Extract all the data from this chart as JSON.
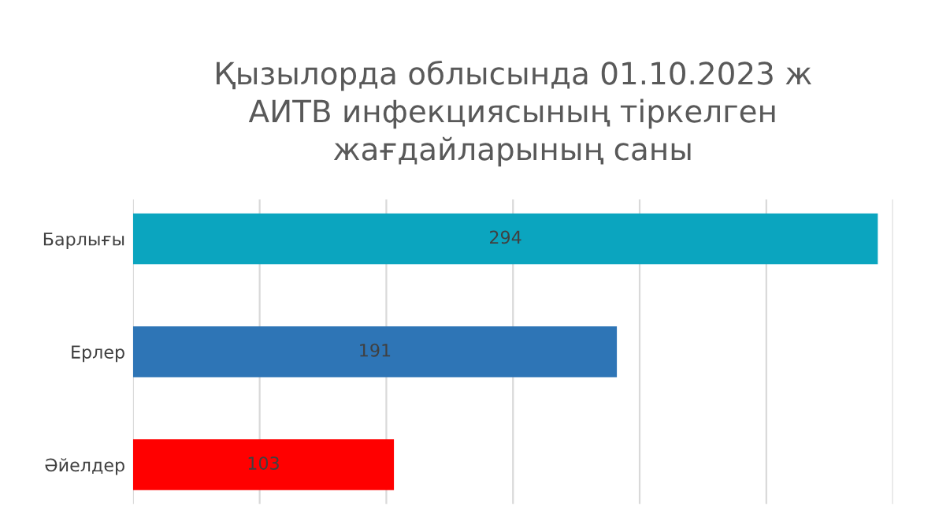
{
  "chart_data": {
    "type": "bar",
    "orientation": "horizontal",
    "title": "Қызылорда облысында 01.10.2023 ж\nАИТВ инфекциясының тіркелген\nжағдайларының саны",
    "categories": [
      "Барлығы",
      "Ерлер",
      "Әйелдер"
    ],
    "values": [
      294,
      191,
      103
    ],
    "colors": [
      "#0ba5bf",
      "#2e75b6",
      "#ff0000"
    ],
    "data_labels": true,
    "xlim": [
      0,
      300
    ],
    "xticks": [
      {
        "value": 0,
        "label": null
      },
      {
        "value": 50,
        "label": null
      },
      {
        "value": 100,
        "label": null
      },
      {
        "value": 150,
        "label": null
      },
      {
        "value": 200,
        "label": null
      },
      {
        "value": 250,
        "label": null
      },
      {
        "value": 300,
        "label": null
      }
    ],
    "grid": "x",
    "tick_labels": "y"
  }
}
